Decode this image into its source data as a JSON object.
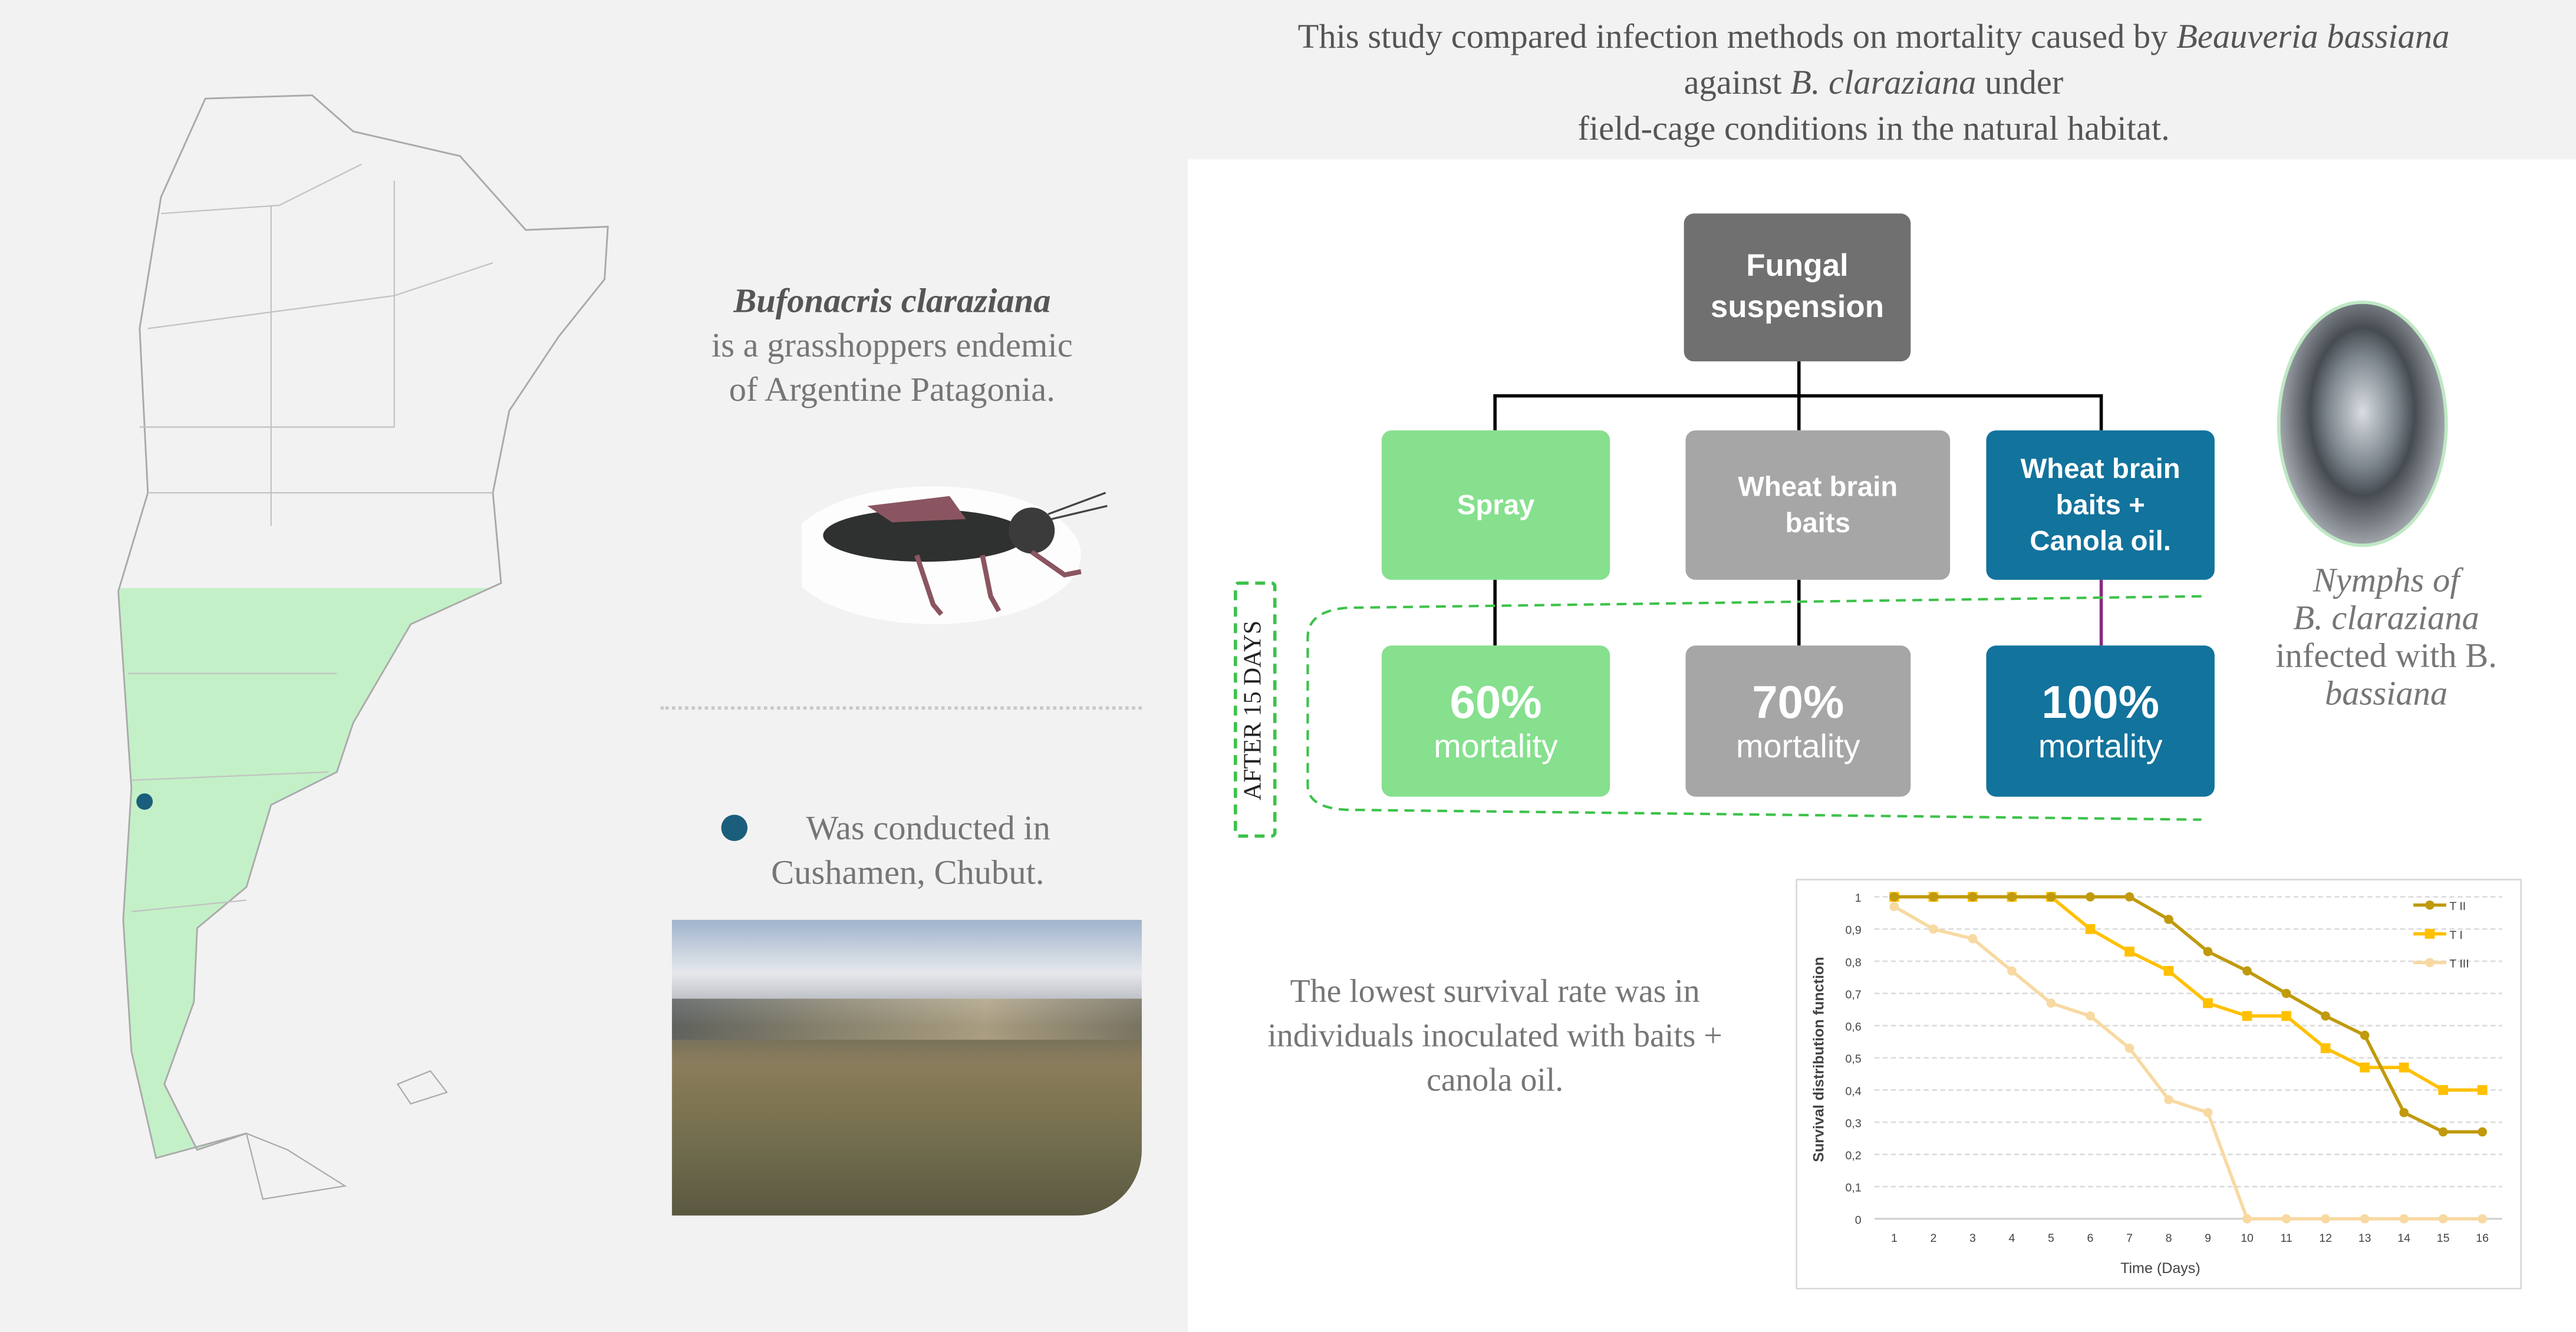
{
  "header": {
    "line1_pre": "This study compared infection methods on mortality caused by ",
    "line1_italic": "Beauveria bassiana",
    "line2_pre": "against ",
    "line2_italic": "B. claraziana",
    "line2_post": " under",
    "line3": "field-cage conditions in the natural habitat."
  },
  "species": {
    "name": "Bufonacris claraziana",
    "line1": "is a grasshoppers endemic",
    "line2": "of Argentine Patagonia."
  },
  "location": {
    "line1": "Was conducted in",
    "line2": "Cushamen, Chubut.",
    "marker_color": "#1b5e7b"
  },
  "flow": {
    "root": "Fungal suspension",
    "treatments": [
      {
        "label": "Spray",
        "value": "60%",
        "unit": "mortality",
        "color": "#86e08e"
      },
      {
        "label": "Wheat brain baits",
        "value": "70%",
        "unit": "mortality",
        "color": "#a6a6a6"
      },
      {
        "label": "Wheat brain baits + Canola oil.",
        "value": "100%",
        "unit": "mortality",
        "color": "#12739c"
      }
    ],
    "after_label": "AFTER 15 DAYS"
  },
  "nymph": {
    "line1": "Nymphs of",
    "line2": "B. claraziana",
    "line3": "infected with B.",
    "line4": "bassiana"
  },
  "summary": {
    "line1": "The lowest survival rate was in",
    "line2": "individuals inoculated with baits +",
    "line3": "canola oil."
  },
  "colors": {
    "panel": "#f2f2f2",
    "map_highlight": "#c4f0c8",
    "root_box": "#707070"
  },
  "chart_data": {
    "type": "line",
    "xlabel": "Time (Days)",
    "ylabel": "Survival distribution function",
    "x": [
      1,
      2,
      3,
      4,
      5,
      6,
      7,
      8,
      9,
      10,
      11,
      12,
      13,
      14,
      15,
      16
    ],
    "ylim": [
      0,
      1
    ],
    "yticks": [
      "0",
      "0,1",
      "0,2",
      "0,3",
      "0,4",
      "0,5",
      "0,6",
      "0,7",
      "0,8",
      "0,9",
      "1"
    ],
    "grid": true,
    "legend": "top-right",
    "series": [
      {
        "name": "T II",
        "marker": "circle",
        "color": "#c09a0c",
        "values": [
          1,
          1,
          1,
          1,
          1,
          1,
          1,
          0.93,
          0.83,
          0.77,
          0.7,
          0.63,
          0.57,
          0.33,
          0.27,
          0.27
        ]
      },
      {
        "name": "T I",
        "marker": "square",
        "color": "#ffc000",
        "values": [
          1,
          1,
          1,
          1,
          1,
          0.9,
          0.83,
          0.77,
          0.67,
          0.63,
          0.63,
          0.53,
          0.47,
          0.47,
          0.4,
          0.4
        ]
      },
      {
        "name": "T III",
        "marker": "circle",
        "color": "#f8d9a2",
        "values": [
          0.97,
          0.9,
          0.87,
          0.77,
          0.67,
          0.63,
          0.53,
          0.37,
          0.33,
          0,
          0,
          0,
          0,
          0,
          0,
          0
        ]
      }
    ]
  }
}
